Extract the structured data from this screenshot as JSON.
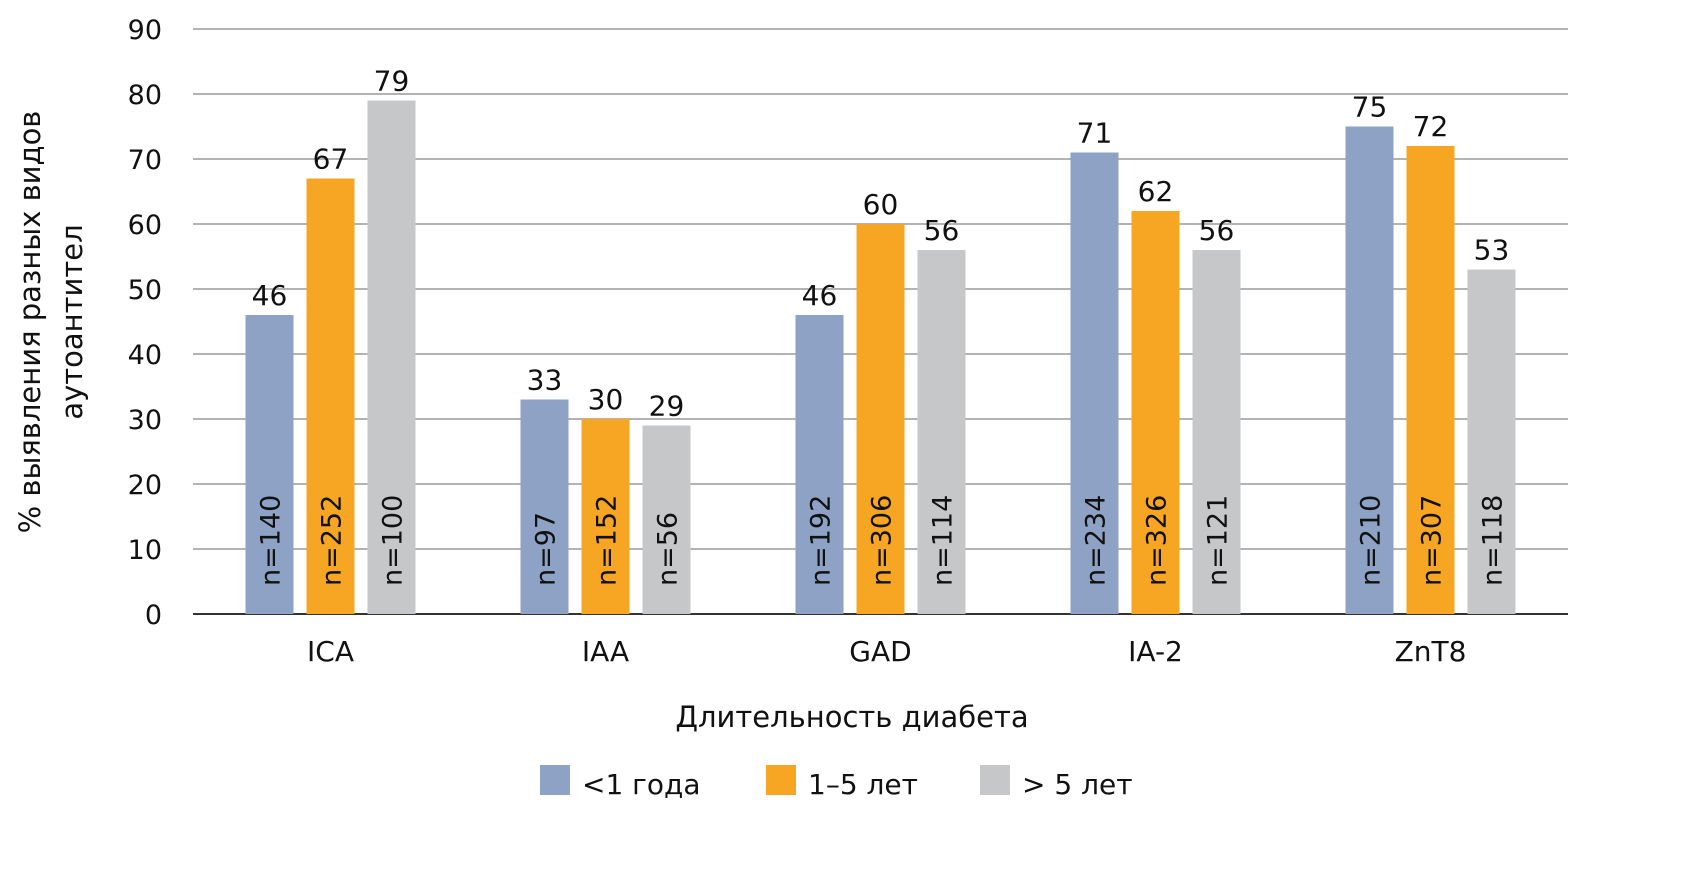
{
  "chart_data": {
    "type": "bar",
    "title": "",
    "xlabel": "Длительность диабета",
    "ylabel_lines": [
      "% выявления разных видов",
      "аутоантител"
    ],
    "ylim": [
      0,
      90
    ],
    "yticks": [
      0,
      10,
      20,
      30,
      40,
      50,
      60,
      70,
      80,
      90
    ],
    "grid": true,
    "legend_position": "bottom",
    "categories": [
      "ICA",
      "IAA",
      "GAD",
      "IA-2",
      "ZnT8"
    ],
    "series": [
      {
        "name": "<1 года",
        "color": "#8DA2C5",
        "values": [
          46,
          33,
          46,
          71,
          75
        ],
        "n": [
          "n=140",
          "n=97",
          "n=192",
          "n=234",
          "n=210"
        ]
      },
      {
        "name": "1–5 лет",
        "color": "#F6A623",
        "values": [
          67,
          30,
          60,
          62,
          72
        ],
        "n": [
          "n=252",
          "n=152",
          "n=306",
          "n=326",
          "n=307"
        ]
      },
      {
        "name": "> 5 лет",
        "color": "#C6C7C9",
        "values": [
          79,
          29,
          56,
          56,
          53
        ],
        "n": [
          "n=100",
          "n=56",
          "n=114",
          "n=121",
          "n=118"
        ]
      }
    ]
  }
}
